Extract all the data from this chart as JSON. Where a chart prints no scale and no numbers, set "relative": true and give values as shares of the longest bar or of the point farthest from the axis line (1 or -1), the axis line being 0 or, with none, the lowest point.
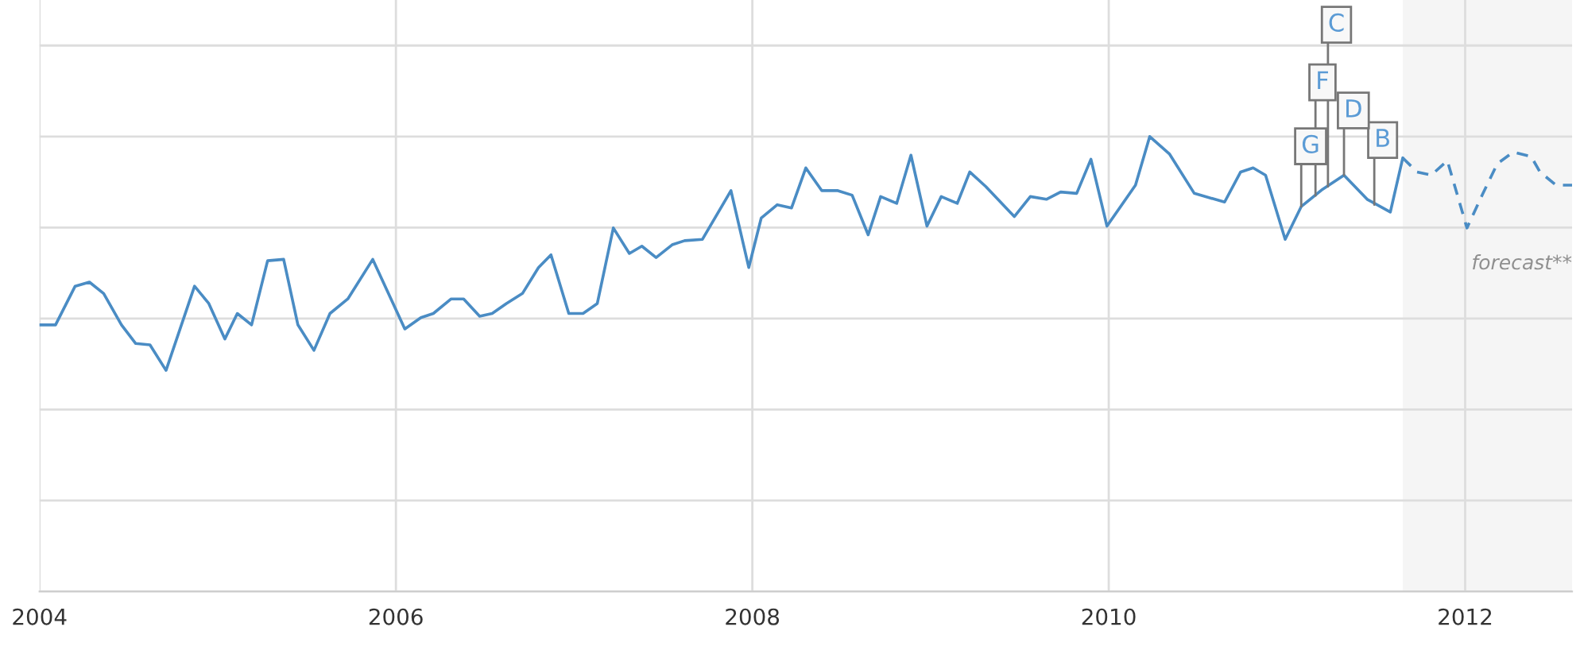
{
  "chart_data": {
    "type": "line",
    "relative": true,
    "tick_labels": "x",
    "xlim": [
      2004,
      2012.6
    ],
    "xticks": [
      2004,
      2006,
      2008,
      2010,
      2012
    ],
    "grid": true,
    "legend": false,
    "series": [
      {
        "color": "#4a8cc4",
        "line_style": "solid",
        "x": [
          2004.0,
          2004.09,
          2004.2,
          2004.28,
          2004.36,
          2004.46,
          2004.54,
          2004.62,
          2004.71,
          2004.87,
          2004.95,
          2005.04,
          2005.11,
          2005.19,
          2005.28,
          2005.37,
          2005.45,
          2005.54,
          2005.63,
          2005.73,
          2005.87,
          2006.05,
          2006.14,
          2006.21,
          2006.31,
          2006.38,
          2006.47,
          2006.54,
          2006.62,
          2006.71,
          2006.8,
          2006.87,
          2006.97,
          2007.05,
          2007.13,
          2007.22,
          2007.31,
          2007.38,
          2007.46,
          2007.55,
          2007.62,
          2007.72,
          2007.88,
          2007.98,
          2008.05,
          2008.14,
          2008.22,
          2008.3,
          2008.39,
          2008.48,
          2008.56,
          2008.65,
          2008.72,
          2008.81,
          2008.89,
          2008.98,
          2009.06,
          2009.15,
          2009.22,
          2009.31,
          2009.47,
          2009.56,
          2009.65,
          2009.73,
          2009.82,
          2009.9,
          2009.99,
          2010.15,
          2010.23,
          2010.34,
          2010.48,
          2010.65,
          2010.74,
          2010.81,
          2010.88,
          2010.99,
          2011.08,
          2011.2,
          2011.32,
          2011.45,
          2011.58,
          2011.65
        ],
        "values": [
          0.586,
          0.586,
          0.671,
          0.68,
          0.655,
          0.586,
          0.545,
          0.542,
          0.486,
          0.671,
          0.633,
          0.555,
          0.611,
          0.586,
          0.727,
          0.73,
          0.586,
          0.53,
          0.611,
          0.643,
          0.73,
          0.577,
          0.602,
          0.611,
          0.643,
          0.643,
          0.605,
          0.611,
          0.633,
          0.655,
          0.712,
          0.74,
          0.611,
          0.611,
          0.633,
          0.799,
          0.743,
          0.759,
          0.734,
          0.762,
          0.771,
          0.774,
          0.881,
          0.712,
          0.821,
          0.85,
          0.843,
          0.931,
          0.881,
          0.881,
          0.871,
          0.784,
          0.868,
          0.853,
          0.959,
          0.803,
          0.868,
          0.853,
          0.922,
          0.89,
          0.824,
          0.868,
          0.862,
          0.878,
          0.875,
          0.95,
          0.803,
          0.893,
          1.0,
          0.962,
          0.875,
          0.856,
          0.922,
          0.931,
          0.915,
          0.774,
          0.846,
          0.884,
          0.915,
          0.862,
          0.834,
          0.953
        ]
      },
      {
        "color": "#4a8cc4",
        "line_style": "dashed",
        "x": [
          2011.65,
          2011.73,
          2011.81,
          2011.9,
          2012.01,
          2012.1,
          2012.18,
          2012.27,
          2012.37,
          2012.42,
          2012.51,
          2012.6
        ],
        "values": [
          0.953,
          0.922,
          0.915,
          0.947,
          0.799,
          0.875,
          0.94,
          0.966,
          0.956,
          0.922,
          0.893,
          0.893
        ]
      }
    ],
    "bands": [
      {
        "axis": "x",
        "from": 2011.65,
        "to": 2012.6,
        "label": "forecast**",
        "color": "#f5f5f5"
      }
    ],
    "annotations": [
      {
        "text": "G",
        "x": 2011.08,
        "y": 0.846
      },
      {
        "text": "F",
        "x": 2011.16,
        "y": 0.87
      },
      {
        "text": "C",
        "x": 2011.23,
        "y": 0.89
      },
      {
        "text": "D",
        "x": 2011.32,
        "y": 0.915
      },
      {
        "text": "B",
        "x": 2011.49,
        "y": 0.85
      }
    ]
  }
}
